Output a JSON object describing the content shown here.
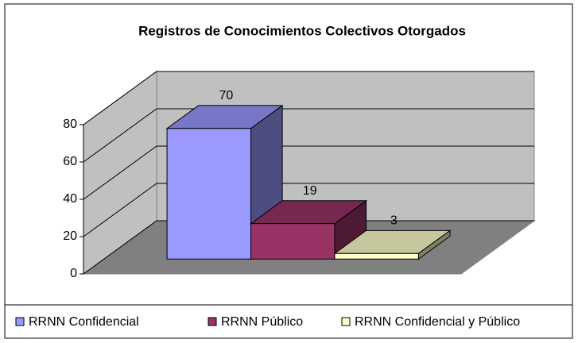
{
  "chart_data": {
    "type": "bar3d",
    "title": "Registros de Conocimientos Colectivos Otorgados",
    "series": [
      {
        "name": "RRNN Confidencial",
        "color": "#9999ff",
        "values": [
          70
        ]
      },
      {
        "name": "RRNN Público",
        "color": "#993366",
        "values": [
          19
        ]
      },
      {
        "name": "RRNN Confidencial y Público",
        "color": "#ffffcc",
        "values": [
          3
        ]
      }
    ],
    "ylim": [
      0,
      80
    ],
    "yticks": [
      0,
      20,
      40,
      60,
      80
    ],
    "grid": true,
    "legend": "bottom"
  }
}
